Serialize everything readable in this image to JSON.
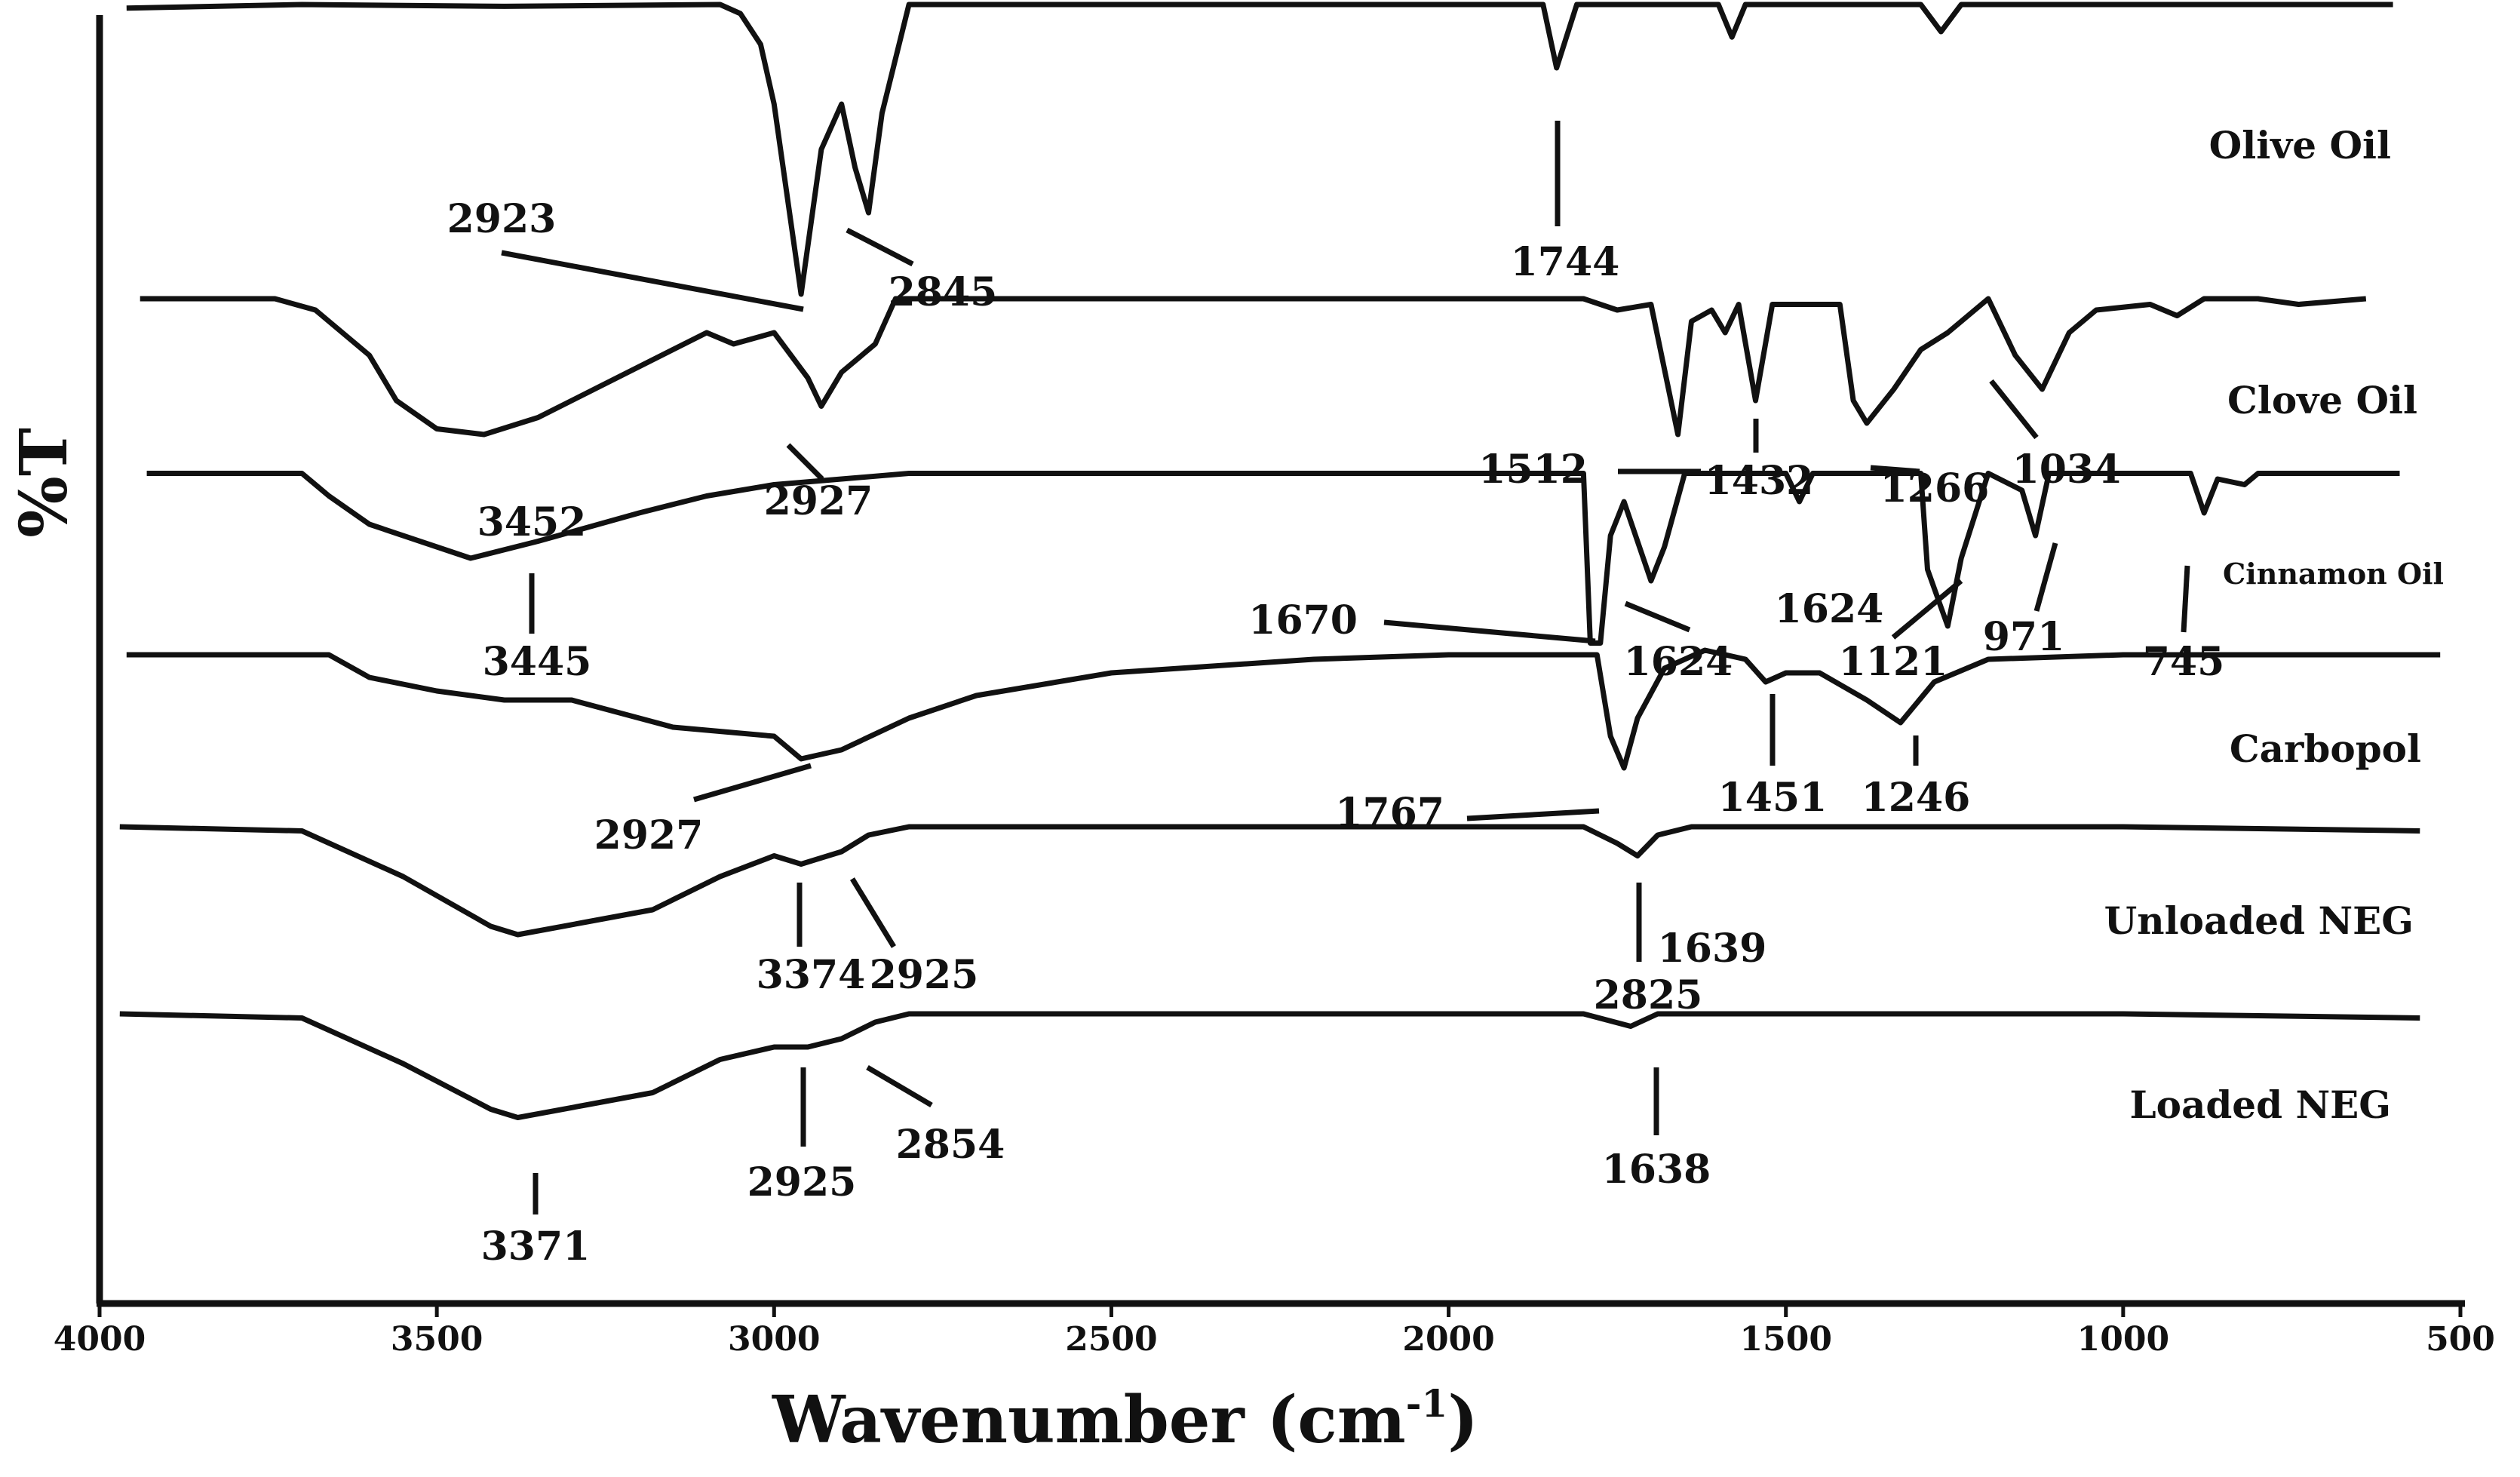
{
  "chart_data": {
    "type": "line",
    "title": "",
    "xlabel": "Wavenumber (cm",
    "xlabel_sup": "-1",
    "xlabel_close": ")",
    "ylabel": "%T",
    "xlim": [
      4000,
      500
    ],
    "x_reversed": true,
    "grid": false,
    "x_ticks": [
      "4000",
      "3500",
      "3000",
      "2500",
      "2000",
      "1500",
      "1000",
      "500"
    ],
    "series": [
      {
        "name": "Olive Oil",
        "points": [
          [
            3960,
            0.58
          ],
          [
            3700,
            0.6
          ],
          [
            3400,
            0.59
          ],
          [
            3080,
            0.6
          ],
          [
            3050,
            0.55
          ],
          [
            3020,
            0.38
          ],
          [
            3000,
            0.05
          ],
          [
            2960,
            -1.0
          ],
          [
            2930,
            -0.2
          ],
          [
            2900,
            0.05
          ],
          [
            2880,
            -0.3
          ],
          [
            2860,
            -0.55
          ],
          [
            2840,
            0.0
          ],
          [
            2800,
            0.6
          ],
          [
            2500,
            0.6
          ],
          [
            2000,
            0.6
          ],
          [
            1860,
            0.6
          ],
          [
            1840,
            0.25
          ],
          [
            1810,
            0.6
          ],
          [
            1600,
            0.6
          ],
          [
            1580,
            0.42
          ],
          [
            1560,
            0.6
          ],
          [
            1300,
            0.6
          ],
          [
            1270,
            0.45
          ],
          [
            1240,
            0.6
          ],
          [
            1000,
            0.6
          ],
          [
            600,
            0.6
          ]
        ],
        "annotations": [
          "2923",
          "2845",
          "1744"
        ]
      },
      {
        "name": "Clove Oil",
        "points": [
          [
            3940,
            0.6
          ],
          [
            3740,
            0.6
          ],
          [
            3680,
            0.5
          ],
          [
            3600,
            0.1
          ],
          [
            3560,
            -0.3
          ],
          [
            3500,
            -0.55
          ],
          [
            3430,
            -0.6
          ],
          [
            3350,
            -0.45
          ],
          [
            3250,
            -0.15
          ],
          [
            3100,
            0.3
          ],
          [
            3060,
            0.2
          ],
          [
            3000,
            0.3
          ],
          [
            2950,
            -0.1
          ],
          [
            2930,
            -0.35
          ],
          [
            2900,
            -0.05
          ],
          [
            2850,
            0.2
          ],
          [
            2820,
            0.6
          ],
          [
            2500,
            0.6
          ],
          [
            1800,
            0.6
          ],
          [
            1750,
            0.5
          ],
          [
            1700,
            0.55
          ],
          [
            1660,
            -0.6
          ],
          [
            1640,
            0.4
          ],
          [
            1610,
            0.5
          ],
          [
            1590,
            0.3
          ],
          [
            1570,
            0.55
          ],
          [
            1545,
            -0.3
          ],
          [
            1520,
            0.55
          ],
          [
            1420,
            0.55
          ],
          [
            1400,
            -0.3
          ],
          [
            1380,
            -0.5
          ],
          [
            1340,
            -0.2
          ],
          [
            1300,
            0.15
          ],
          [
            1260,
            0.3
          ],
          [
            1200,
            0.6
          ],
          [
            1160,
            0.1
          ],
          [
            1120,
            -0.2
          ],
          [
            1080,
            0.3
          ],
          [
            1040,
            0.5
          ],
          [
            960,
            0.55
          ],
          [
            920,
            0.45
          ],
          [
            880,
            0.6
          ],
          [
            800,
            0.6
          ],
          [
            740,
            0.55
          ],
          [
            640,
            0.6
          ]
        ],
        "annotations": [
          "3452",
          "2927",
          "1512",
          "1432",
          "1266",
          "1034"
        ]
      },
      {
        "name": "Cinnamon Oil",
        "points": [
          [
            3930,
            0.55
          ],
          [
            3700,
            0.55
          ],
          [
            3660,
            0.35
          ],
          [
            3600,
            0.1
          ],
          [
            3500,
            -0.1
          ],
          [
            3450,
            -0.2
          ],
          [
            3350,
            -0.05
          ],
          [
            3200,
            0.2
          ],
          [
            3100,
            0.35
          ],
          [
            3000,
            0.45
          ],
          [
            2900,
            0.5
          ],
          [
            2800,
            0.55
          ],
          [
            2000,
            0.55
          ],
          [
            1800,
            0.55
          ],
          [
            1790,
            -0.95
          ],
          [
            1775,
            -0.95
          ],
          [
            1760,
            0.0
          ],
          [
            1740,
            0.3
          ],
          [
            1700,
            -0.4
          ],
          [
            1680,
            -0.1
          ],
          [
            1650,
            0.55
          ],
          [
            1500,
            0.55
          ],
          [
            1480,
            0.3
          ],
          [
            1460,
            0.55
          ],
          [
            1300,
            0.55
          ],
          [
            1290,
            -0.3
          ],
          [
            1260,
            -0.8
          ],
          [
            1240,
            -0.2
          ],
          [
            1200,
            0.55
          ],
          [
            1150,
            0.4
          ],
          [
            1130,
            0.0
          ],
          [
            1110,
            0.55
          ],
          [
            900,
            0.55
          ],
          [
            880,
            0.2
          ],
          [
            860,
            0.5
          ],
          [
            820,
            0.45
          ],
          [
            800,
            0.55
          ],
          [
            590,
            0.55
          ]
        ],
        "annotations": [
          "3445",
          "1670",
          "1624",
          "1624",
          "1121",
          "971",
          "745"
        ]
      },
      {
        "name": "Carbopol",
        "points": [
          [
            3960,
            0.6
          ],
          [
            3660,
            0.6
          ],
          [
            3600,
            0.35
          ],
          [
            3500,
            0.2
          ],
          [
            3400,
            0.1
          ],
          [
            3300,
            0.1
          ],
          [
            3150,
            -0.2
          ],
          [
            3000,
            -0.3
          ],
          [
            2960,
            -0.55
          ],
          [
            2900,
            -0.45
          ],
          [
            2800,
            -0.1
          ],
          [
            2700,
            0.15
          ],
          [
            2500,
            0.4
          ],
          [
            2200,
            0.55
          ],
          [
            2000,
            0.6
          ],
          [
            1780,
            0.6
          ],
          [
            1760,
            -0.3
          ],
          [
            1740,
            -0.65
          ],
          [
            1720,
            -0.1
          ],
          [
            1680,
            0.45
          ],
          [
            1620,
            0.65
          ],
          [
            1560,
            0.55
          ],
          [
            1530,
            0.3
          ],
          [
            1500,
            0.4
          ],
          [
            1450,
            0.4
          ],
          [
            1380,
            0.1
          ],
          [
            1330,
            -0.15
          ],
          [
            1280,
            0.3
          ],
          [
            1200,
            0.55
          ],
          [
            1000,
            0.6
          ],
          [
            530,
            0.6
          ]
        ],
        "annotations": [
          "2927",
          "1767",
          "1451",
          "1246"
        ]
      },
      {
        "name": "Unloaded NEG",
        "points": [
          [
            3970,
            0.6
          ],
          [
            3700,
            0.55
          ],
          [
            3550,
            0.0
          ],
          [
            3420,
            -0.6
          ],
          [
            3380,
            -0.7
          ],
          [
            3280,
            -0.55
          ],
          [
            3180,
            -0.4
          ],
          [
            3080,
            0.0
          ],
          [
            3000,
            0.25
          ],
          [
            2960,
            0.15
          ],
          [
            2900,
            0.3
          ],
          [
            2860,
            0.5
          ],
          [
            2800,
            0.6
          ],
          [
            2500,
            0.6
          ],
          [
            2000,
            0.6
          ],
          [
            1800,
            0.6
          ],
          [
            1750,
            0.4
          ],
          [
            1720,
            0.25
          ],
          [
            1690,
            0.5
          ],
          [
            1640,
            0.6
          ],
          [
            1000,
            0.6
          ],
          [
            560,
            0.55
          ]
        ],
        "annotations": [
          "3374",
          "2925",
          "2825",
          "1639",
          "1639"
        ]
      },
      {
        "name": "Loaded NEG",
        "points": [
          [
            3970,
            0.6
          ],
          [
            3700,
            0.55
          ],
          [
            3550,
            0.0
          ],
          [
            3420,
            -0.55
          ],
          [
            3380,
            -0.65
          ],
          [
            3280,
            -0.5
          ],
          [
            3180,
            -0.35
          ],
          [
            3080,
            0.05
          ],
          [
            3000,
            0.2
          ],
          [
            2950,
            0.2
          ],
          [
            2900,
            0.3
          ],
          [
            2850,
            0.5
          ],
          [
            2800,
            0.6
          ],
          [
            2500,
            0.6
          ],
          [
            2000,
            0.6
          ],
          [
            1800,
            0.6
          ],
          [
            1730,
            0.45
          ],
          [
            1690,
            0.6
          ],
          [
            1000,
            0.6
          ],
          [
            560,
            0.55
          ]
        ],
        "annotations": [
          "3371",
          "2925",
          "2854",
          "1638"
        ]
      }
    ]
  }
}
